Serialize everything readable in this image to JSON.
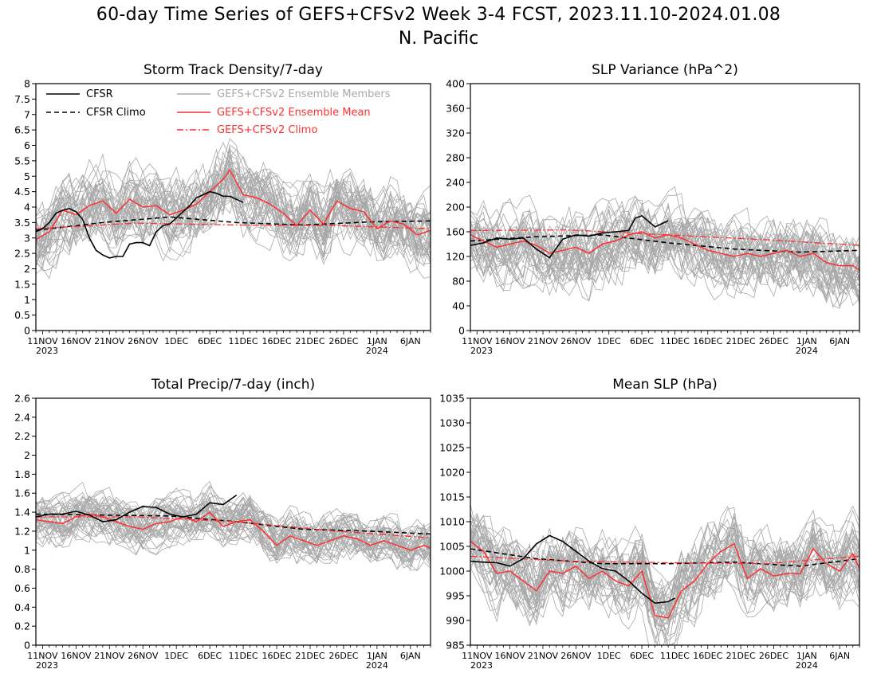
{
  "title": "60-day Time Series of GEFS+CFSv2 Week 3-4 FCST, 2023.11.10-2024.01.08",
  "subtitle": "N. Pacific",
  "colors": {
    "cfsr": "#000000",
    "cfsr_climo": "#000000",
    "ensemble_members": "#a8a8a8",
    "ensemble_mean": "#ff3030",
    "ensemble_climo": "#ff3030"
  },
  "legend": {
    "cfsr": "CFSR",
    "cfsr_climo": "CFSR Climo",
    "members": "GEFS+CFSv2 Ensemble Members",
    "mean": "GEFS+CFSv2 Ensemble Mean",
    "climo": "GEFS+CFSv2 Climo"
  },
  "x_ticks": [
    "11NOV",
    "16NOV",
    "21NOV",
    "26NOV",
    "1DEC",
    "6DEC",
    "11DEC",
    "16DEC",
    "21DEC",
    "26DEC",
    "1JAN",
    "6JAN"
  ],
  "x_year_labels": [
    {
      "at": 0,
      "text": "2023"
    },
    {
      "at": 51,
      "text": "2024"
    }
  ],
  "chart_data": [
    {
      "type": "line",
      "title": "Storm Track Density/7-day",
      "legend_position": "top",
      "x_start": "2023-11-10",
      "x_days": 60,
      "ylim": [
        0,
        8
      ],
      "yticks": [
        0,
        0.5,
        1,
        1.5,
        2,
        2.5,
        3,
        3.5,
        4,
        4.5,
        5,
        5.5,
        6,
        6.5,
        7,
        7.5,
        8
      ],
      "ensemble_members": {
        "count": 40,
        "spread": 1.0
      },
      "series": [
        {
          "key": "cfsr",
          "name": "CFSR",
          "x": [
            "2023-11-10",
            "2023-11-11",
            "2023-11-12",
            "2023-11-13",
            "2023-11-14",
            "2023-11-15",
            "2023-11-16",
            "2023-11-17",
            "2023-11-18",
            "2023-11-19",
            "2023-11-20",
            "2023-11-21",
            "2023-11-22",
            "2023-11-23",
            "2023-11-24",
            "2023-11-25",
            "2023-11-26",
            "2023-11-27",
            "2023-11-28",
            "2023-11-29",
            "2023-11-30",
            "2023-12-01",
            "2023-12-02",
            "2023-12-03",
            "2023-12-04",
            "2023-12-05",
            "2023-12-06",
            "2023-12-07",
            "2023-12-08",
            "2023-12-09",
            "2023-12-10",
            "2023-12-11"
          ],
          "values": [
            3.2,
            3.3,
            3.5,
            3.8,
            3.9,
            3.95,
            3.85,
            3.6,
            3.0,
            2.6,
            2.45,
            2.35,
            2.4,
            2.4,
            2.8,
            2.85,
            2.85,
            2.75,
            3.2,
            3.4,
            3.45,
            3.65,
            3.85,
            4.05,
            4.3,
            4.4,
            4.5,
            4.45,
            4.35,
            4.35,
            4.25,
            4.15
          ]
        },
        {
          "key": "cfsr_climo",
          "name": "CFSR Climo",
          "x": [
            "2023-11-10",
            "2023-11-20",
            "2023-11-30",
            "2023-12-10",
            "2023-12-20",
            "2023-12-30",
            "2024-01-08"
          ],
          "values": [
            3.25,
            3.5,
            3.68,
            3.5,
            3.42,
            3.52,
            3.55
          ]
        },
        {
          "key": "ensemble_mean",
          "name": "GEFS+CFSv2 Ensemble Mean",
          "x": [
            "2023-11-10",
            "2023-11-12",
            "2023-11-14",
            "2023-11-16",
            "2023-11-18",
            "2023-11-20",
            "2023-11-22",
            "2023-11-24",
            "2023-11-26",
            "2023-11-28",
            "2023-11-30",
            "2023-12-02",
            "2023-12-04",
            "2023-12-06",
            "2023-12-08",
            "2023-12-09",
            "2023-12-11",
            "2023-12-13",
            "2023-12-15",
            "2023-12-17",
            "2023-12-19",
            "2023-12-21",
            "2023-12-23",
            "2023-12-25",
            "2023-12-27",
            "2023-12-29",
            "2023-12-31",
            "2024-01-02",
            "2024-01-04",
            "2024-01-06",
            "2024-01-08"
          ],
          "values": [
            2.95,
            3.2,
            3.9,
            3.75,
            4.05,
            4.2,
            3.8,
            4.25,
            4.0,
            4.05,
            3.75,
            3.9,
            4.1,
            4.5,
            4.9,
            5.2,
            4.4,
            4.3,
            4.1,
            3.8,
            3.4,
            3.9,
            3.45,
            4.2,
            3.95,
            3.85,
            3.3,
            3.55,
            3.45,
            3.1,
            3.25
          ]
        },
        {
          "key": "ensemble_climo",
          "name": "GEFS+CFSv2 Climo",
          "x": [
            "2023-11-10",
            "2023-11-25",
            "2023-12-10",
            "2023-12-25",
            "2024-01-08"
          ],
          "values": [
            3.3,
            3.48,
            3.42,
            3.4,
            3.3
          ]
        }
      ]
    },
    {
      "type": "line",
      "title": "SLP Variance (hPa^2)",
      "x_start": "2023-11-10",
      "x_days": 60,
      "ylim": [
        0,
        400
      ],
      "yticks": [
        0,
        40,
        80,
        120,
        160,
        200,
        240,
        280,
        320,
        360,
        400
      ],
      "ensemble_members": {
        "count": 40,
        "spread": 50
      },
      "series": [
        {
          "key": "cfsr",
          "name": "CFSR",
          "x": [
            "2023-11-10",
            "2023-11-12",
            "2023-11-14",
            "2023-11-16",
            "2023-11-18",
            "2023-11-20",
            "2023-11-22",
            "2023-11-24",
            "2023-11-26",
            "2023-11-28",
            "2023-11-30",
            "2023-12-02",
            "2023-12-04",
            "2023-12-05",
            "2023-12-06",
            "2023-12-08",
            "2023-12-10"
          ],
          "values": [
            138,
            142,
            150,
            148,
            150,
            132,
            118,
            148,
            155,
            153,
            158,
            160,
            162,
            182,
            186,
            168,
            178
          ]
        },
        {
          "key": "cfsr_climo",
          "name": "CFSR Climo",
          "x": [
            "2023-11-10",
            "2023-11-20",
            "2023-11-30",
            "2023-12-10",
            "2023-12-20",
            "2023-12-30",
            "2024-01-08"
          ],
          "values": [
            145,
            152,
            155,
            142,
            132,
            127,
            130
          ]
        },
        {
          "key": "ensemble_mean",
          "name": "GEFS+CFSv2 Ensemble Mean",
          "x": [
            "2023-11-10",
            "2023-11-12",
            "2023-11-14",
            "2023-11-16",
            "2023-11-18",
            "2023-11-20",
            "2023-11-22",
            "2023-11-24",
            "2023-11-26",
            "2023-11-28",
            "2023-11-30",
            "2023-12-02",
            "2023-12-04",
            "2023-12-06",
            "2023-12-08",
            "2023-12-10",
            "2023-12-12",
            "2023-12-14",
            "2023-12-16",
            "2023-12-18",
            "2023-12-20",
            "2023-12-22",
            "2023-12-24",
            "2023-12-26",
            "2023-12-28",
            "2023-12-30",
            "2024-01-01",
            "2024-01-03",
            "2024-01-05",
            "2024-01-07",
            "2024-01-08"
          ],
          "values": [
            155,
            145,
            135,
            140,
            145,
            138,
            125,
            130,
            135,
            125,
            140,
            145,
            155,
            160,
            150,
            155,
            150,
            140,
            130,
            125,
            120,
            125,
            120,
            125,
            130,
            120,
            125,
            110,
            105,
            105,
            98
          ]
        },
        {
          "key": "ensemble_climo",
          "name": "GEFS+CFSv2 Climo",
          "x": [
            "2023-11-10",
            "2023-11-25",
            "2023-12-10",
            "2023-12-25",
            "2024-01-08"
          ],
          "values": [
            162,
            163,
            155,
            147,
            138
          ]
        }
      ]
    },
    {
      "type": "line",
      "title": "Total Precip/7-day (inch)",
      "x_start": "2023-11-10",
      "x_days": 60,
      "ylim": [
        0,
        2.6
      ],
      "yticks": [
        0,
        0.2,
        0.4,
        0.6,
        0.8,
        1,
        1.2,
        1.4,
        1.6,
        1.8,
        2,
        2.2,
        2.4,
        2.6
      ],
      "ensemble_members": {
        "count": 40,
        "spread": 0.2
      },
      "series": [
        {
          "key": "cfsr",
          "name": "CFSR",
          "x": [
            "2023-11-10",
            "2023-11-12",
            "2023-11-14",
            "2023-11-16",
            "2023-11-18",
            "2023-11-20",
            "2023-11-22",
            "2023-11-24",
            "2023-11-26",
            "2023-11-28",
            "2023-11-30",
            "2023-12-02",
            "2023-12-04",
            "2023-12-06",
            "2023-12-08",
            "2023-12-10"
          ],
          "values": [
            1.35,
            1.38,
            1.38,
            1.41,
            1.37,
            1.3,
            1.32,
            1.4,
            1.46,
            1.45,
            1.38,
            1.35,
            1.38,
            1.5,
            1.48,
            1.58
          ]
        },
        {
          "key": "cfsr_climo",
          "name": "CFSR Climo",
          "x": [
            "2023-11-10",
            "2023-11-20",
            "2023-11-30",
            "2023-12-10",
            "2023-12-20",
            "2023-12-30",
            "2024-01-08"
          ],
          "values": [
            1.38,
            1.37,
            1.36,
            1.3,
            1.22,
            1.2,
            1.17
          ]
        },
        {
          "key": "ensemble_mean",
          "name": "GEFS+CFSv2 Ensemble Mean",
          "x": [
            "2023-11-10",
            "2023-11-12",
            "2023-11-14",
            "2023-11-16",
            "2023-11-18",
            "2023-11-20",
            "2023-11-22",
            "2023-11-24",
            "2023-11-26",
            "2023-11-28",
            "2023-11-30",
            "2023-12-02",
            "2023-12-04",
            "2023-12-06",
            "2023-12-08",
            "2023-12-10",
            "2023-12-12",
            "2023-12-14",
            "2023-12-16",
            "2023-12-18",
            "2023-12-20",
            "2023-12-22",
            "2023-12-24",
            "2023-12-26",
            "2023-12-28",
            "2023-12-30",
            "2024-01-01",
            "2024-01-03",
            "2024-01-05",
            "2024-01-07",
            "2024-01-08"
          ],
          "values": [
            1.32,
            1.3,
            1.28,
            1.35,
            1.38,
            1.35,
            1.3,
            1.25,
            1.22,
            1.28,
            1.3,
            1.35,
            1.3,
            1.4,
            1.25,
            1.3,
            1.32,
            1.2,
            1.05,
            1.15,
            1.1,
            1.05,
            1.1,
            1.15,
            1.12,
            1.05,
            1.1,
            1.05,
            1.0,
            1.05,
            1.02
          ]
        },
        {
          "key": "ensemble_climo",
          "name": "GEFS+CFSv2 Climo",
          "x": [
            "2023-11-10",
            "2023-11-25",
            "2023-12-10",
            "2023-12-25",
            "2024-01-08"
          ],
          "values": [
            1.35,
            1.35,
            1.3,
            1.2,
            1.13
          ]
        }
      ]
    },
    {
      "type": "line",
      "title": "Mean SLP (hPa)",
      "x_start": "2023-11-10",
      "x_days": 60,
      "ylim": [
        985,
        1035
      ],
      "yticks": [
        985,
        990,
        995,
        1000,
        1005,
        1010,
        1015,
        1020,
        1025,
        1030,
        1035
      ],
      "ensemble_members": {
        "count": 40,
        "spread": 6
      },
      "series": [
        {
          "key": "cfsr",
          "name": "CFSR",
          "x": [
            "2023-11-10",
            "2023-11-12",
            "2023-11-14",
            "2023-11-16",
            "2023-11-18",
            "2023-11-20",
            "2023-11-22",
            "2023-11-24",
            "2023-11-26",
            "2023-11-28",
            "2023-11-30",
            "2023-12-02",
            "2023-12-04",
            "2023-12-06",
            "2023-12-08",
            "2023-12-10",
            "2023-12-11"
          ],
          "values": [
            1002,
            1001.8,
            1001.7,
            1001,
            1002.5,
            1005.5,
            1007.2,
            1006,
            1004,
            1002,
            1000.5,
            1000,
            998,
            995.5,
            993.5,
            993.8,
            994.5
          ]
        },
        {
          "key": "cfsr_climo",
          "name": "CFSR Climo",
          "x": [
            "2023-11-10",
            "2023-11-20",
            "2023-11-30",
            "2023-12-10",
            "2023-12-20",
            "2023-12-30",
            "2024-01-08"
          ],
          "values": [
            1004.5,
            1002.5,
            1001.5,
            1001.5,
            1001.8,
            1001,
            1002.5
          ]
        },
        {
          "key": "ensemble_mean",
          "name": "GEFS+CFSv2 Ensemble Mean",
          "x": [
            "2023-11-10",
            "2023-11-12",
            "2023-11-14",
            "2023-11-16",
            "2023-11-18",
            "2023-11-20",
            "2023-11-22",
            "2023-11-24",
            "2023-11-26",
            "2023-11-28",
            "2023-11-30",
            "2023-12-02",
            "2023-12-04",
            "2023-12-06",
            "2023-12-08",
            "2023-12-10",
            "2023-12-12",
            "2023-12-14",
            "2023-12-16",
            "2023-12-18",
            "2023-12-20",
            "2023-12-22",
            "2023-12-24",
            "2023-12-26",
            "2023-12-28",
            "2023-12-30",
            "2024-01-01",
            "2024-01-03",
            "2024-01-05",
            "2024-01-07",
            "2024-01-08"
          ],
          "values": [
            1006,
            1004,
            999.5,
            1000,
            998,
            996,
            1000,
            999.5,
            1001,
            998.5,
            1000,
            998,
            997,
            1000,
            991,
            990.5,
            996,
            998,
            1001.5,
            1004,
            1005.5,
            998.5,
            1000.5,
            999,
            999.5,
            999.5,
            1004.5,
            1001.5,
            1000,
            1003.5,
            1000.5
          ]
        },
        {
          "key": "ensemble_climo",
          "name": "GEFS+CFSv2 Climo",
          "x": [
            "2023-11-10",
            "2023-11-25",
            "2023-12-10",
            "2023-12-25",
            "2024-01-08"
          ],
          "values": [
            1003,
            1002,
            1001.7,
            1001.5,
            1003
          ]
        }
      ]
    }
  ]
}
